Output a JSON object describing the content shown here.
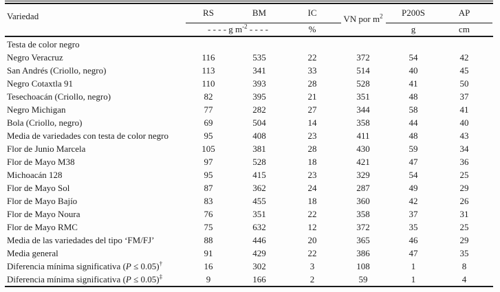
{
  "page": {
    "background": "#fdfdfd",
    "text_color": "#1e1e1e",
    "rule_color": "#1a1a1a"
  },
  "table": {
    "header": {
      "variety_col": "Variedad",
      "col_rs": "RS",
      "col_bm": "BM",
      "col_ic": "IC",
      "col_vn": [
        {
          "t": "VN por m"
        },
        {
          "t": "2",
          "sup": true
        }
      ],
      "col_p200s": "P200S",
      "col_ap": "AP",
      "unit_gm2": [
        {
          "t": "- - - -  g m"
        },
        {
          "t": "-2",
          "sup": true
        },
        {
          "t": "  - - - -"
        }
      ],
      "unit_pct": "%",
      "unit_g": "g",
      "unit_cm": "cm"
    },
    "column_keys": [
      "rs",
      "bm",
      "ic",
      "vn",
      "p200s",
      "ap"
    ],
    "rows": [
      {
        "label": "Testa de color negro",
        "values": [
          "",
          "",
          "",
          "",
          "",
          ""
        ]
      },
      {
        "label": "Negro Veracruz",
        "values": [
          "116",
          "535",
          "22",
          "372",
          "54",
          "42"
        ]
      },
      {
        "label": "San Andrés (Criollo, negro)",
        "values": [
          "113",
          "341",
          "33",
          "514",
          "40",
          "45"
        ]
      },
      {
        "label": "Negro Cotaxtla 91",
        "values": [
          "110",
          "393",
          "28",
          "528",
          "41",
          "50"
        ]
      },
      {
        "label": "Tesechoacán (Criollo, negro)",
        "values": [
          "82",
          "395",
          "21",
          "351",
          "48",
          "37"
        ]
      },
      {
        "label": "Negro Michigan",
        "values": [
          "77",
          "282",
          "27",
          "344",
          "58",
          "41"
        ]
      },
      {
        "label": "Bola (Criollo, negro)",
        "values": [
          "69",
          "504",
          "14",
          "358",
          "44",
          "40"
        ]
      },
      {
        "label": "Media de variedades con testa de color negro",
        "values": [
          "95",
          "408",
          "23",
          "411",
          "48",
          "43"
        ]
      },
      {
        "label": "Flor de Junio Marcela",
        "values": [
          "105",
          "381",
          "28",
          "430",
          "59",
          "34"
        ]
      },
      {
        "label": "Flor de Mayo M38",
        "values": [
          "97",
          "528",
          "18",
          "421",
          "47",
          "36"
        ]
      },
      {
        "label": "Michoacán 128",
        "values": [
          "95",
          "415",
          "23",
          "329",
          "54",
          "25"
        ]
      },
      {
        "label": "Flor de Mayo Sol",
        "values": [
          "87",
          "362",
          "24",
          "287",
          "49",
          "29"
        ]
      },
      {
        "label": "Flor de Mayo Bajío",
        "values": [
          "83",
          "455",
          "18",
          "360",
          "42",
          "26"
        ]
      },
      {
        "label": "Flor de Mayo Noura",
        "values": [
          "76",
          "351",
          "22",
          "358",
          "37",
          "31"
        ]
      },
      {
        "label": "Flor de Mayo RMC",
        "values": [
          "75",
          "632",
          "12",
          "372",
          "35",
          "25"
        ]
      },
      {
        "label": "Media de las variedades del tipo ‘FM/FJ’",
        "values": [
          "88",
          "446",
          "20",
          "365",
          "46",
          "29"
        ]
      },
      {
        "label": "Media general",
        "values": [
          "91",
          "429",
          "22",
          "386",
          "47",
          "35"
        ]
      },
      {
        "label": [
          {
            "t": "Diferencia mínima significativa ("
          },
          {
            "t": "P",
            "i": true
          },
          {
            "t": " ≤ 0.05)"
          },
          {
            "t": "†",
            "sup": true
          }
        ],
        "values": [
          "16",
          "302",
          "3",
          "108",
          "1",
          "8"
        ]
      },
      {
        "label": [
          {
            "t": "Diferencia mínima significativa ("
          },
          {
            "t": "P",
            "i": true
          },
          {
            "t": " ≤ 0.05)"
          },
          {
            "t": "‡",
            "sup": true
          }
        ],
        "values": [
          "9",
          "166",
          "2",
          "59",
          "1",
          "4"
        ]
      }
    ]
  }
}
